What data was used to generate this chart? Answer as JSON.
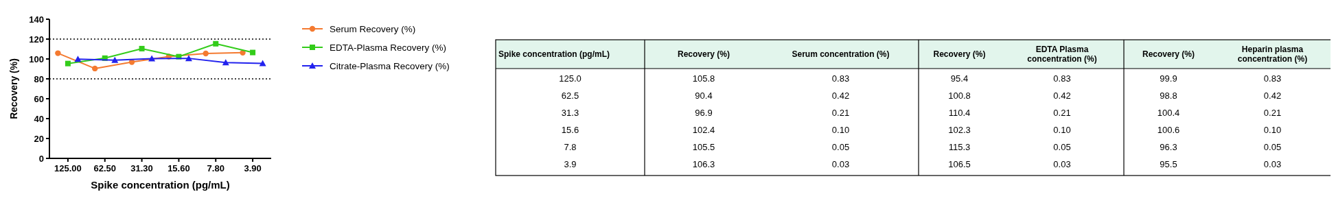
{
  "chart_data": {
    "type": "line",
    "xlabel": "Spike concentration (pg/mL)",
    "ylabel": "Recovery (%)",
    "categories": [
      "125.00",
      "62.50",
      "31.30",
      "15.60",
      "7.80",
      "3.90"
    ],
    "ylim": [
      0,
      140
    ],
    "yticks": [
      0,
      20,
      40,
      60,
      80,
      100,
      120,
      140
    ],
    "legend": "right",
    "ref_lines": [
      {
        "axis": "y",
        "value": 120,
        "color": "#000000",
        "line_style": "dotted"
      },
      {
        "axis": "y",
        "value": 80,
        "color": "#000000",
        "line_style": "dotted"
      }
    ],
    "series": [
      {
        "name": "Serum Recovery (%)",
        "color": "#f47a30",
        "marker": "circle",
        "values": [
          105.8,
          90.4,
          96.9,
          102.4,
          105.5,
          106.3
        ]
      },
      {
        "name": "EDTA-Plasma Recovery (%)",
        "color": "#33cc1a",
        "marker": "square",
        "values": [
          95.4,
          100.8,
          110.4,
          102.3,
          115.3,
          106.5
        ]
      },
      {
        "name": "Citrate-Plasma Recovery (%)",
        "color": "#2222ee",
        "marker": "triangle",
        "values": [
          99.9,
          98.8,
          100.4,
          100.6,
          96.3,
          95.5
        ]
      }
    ],
    "annotations": [
      "Spike concentration (pg/mL)",
      "Recovery (%)",
      "Serum concentration (%)",
      "Recovery (%)",
      "EDTA Plasma concentration (%)",
      "Recovery (%)",
      "Heparin plasma concentration (%)",
      "125.0",
      "105.8",
      "0.83",
      "95.4",
      "0.83",
      "99.9",
      "0.83",
      "62.5",
      "90.4",
      "0.42",
      "100.8",
      "0.42",
      "98.8",
      "0.42",
      "31.3",
      "96.9",
      "0.21",
      "110.4",
      "0.21",
      "100.4",
      "0.21",
      "15.6",
      "102.4",
      "0.10",
      "102.3",
      "0.10",
      "100.6",
      "0.10",
      "7.8",
      "105.5",
      "0.05",
      "115.3",
      "0.05",
      "96.3",
      "0.05",
      "3.9",
      "106.3",
      "0.03",
      "106.5",
      "0.03",
      "95.5",
      "0.03"
    ]
  }
}
